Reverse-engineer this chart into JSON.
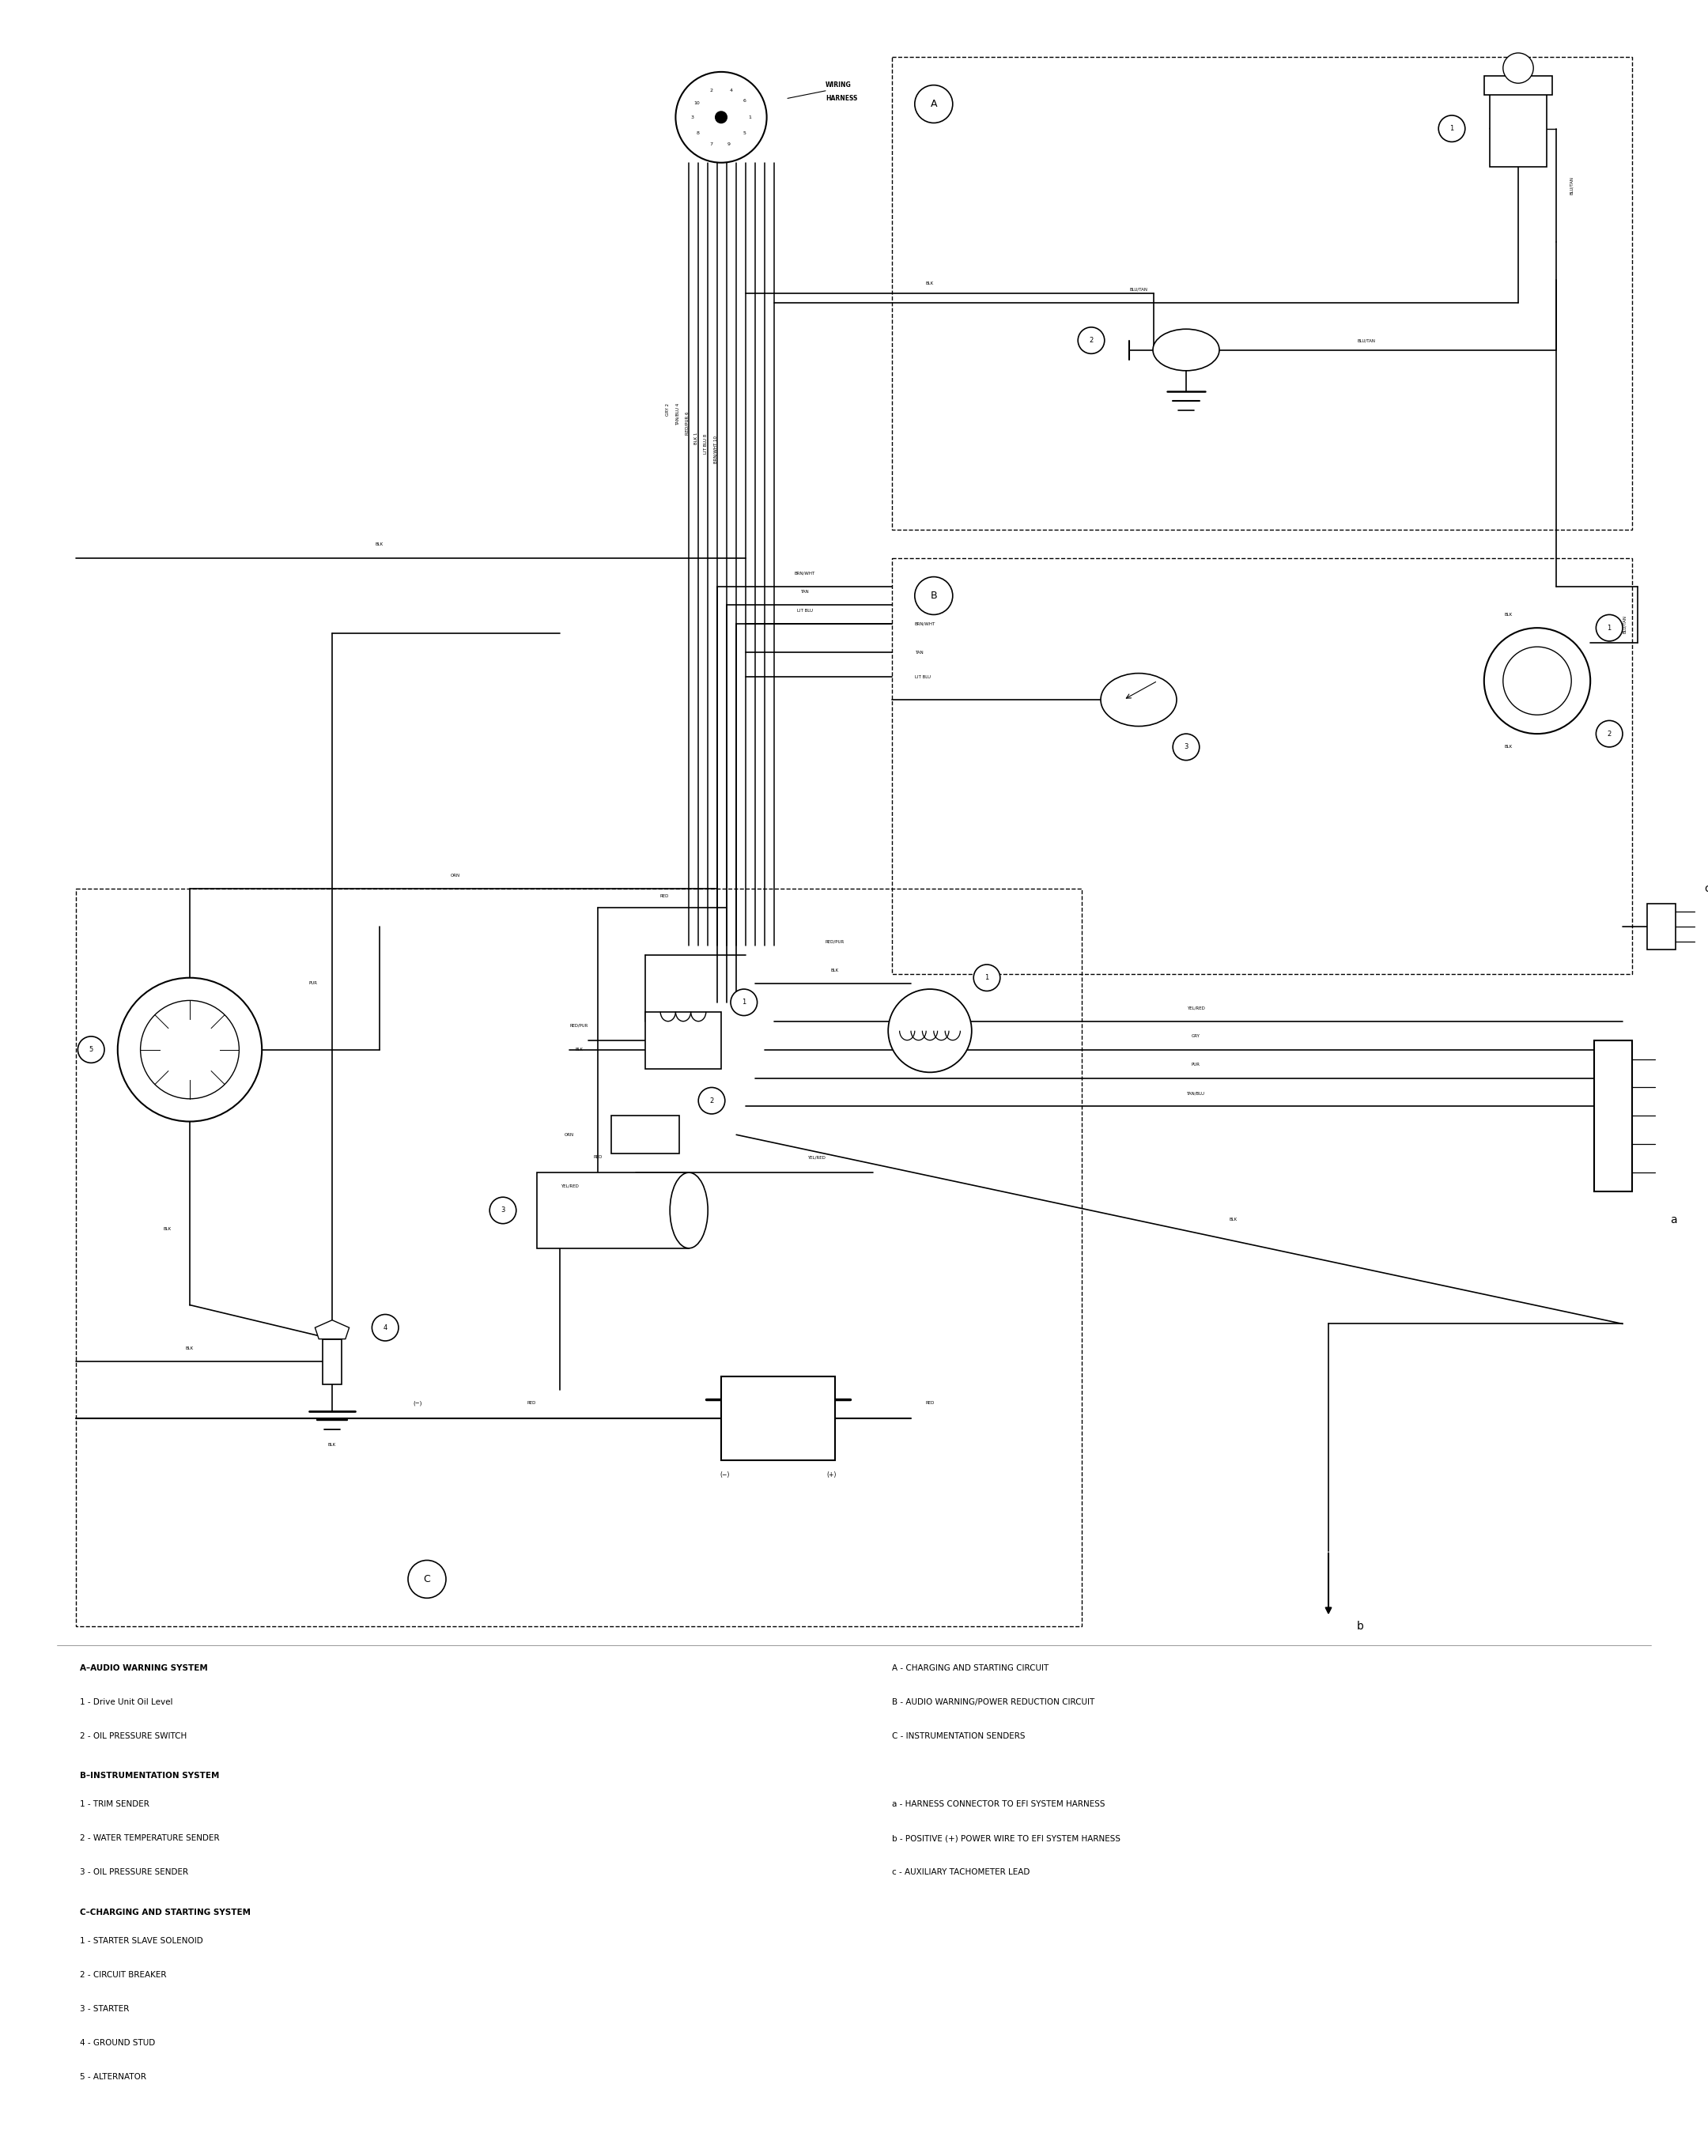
{
  "background_color": "#ffffff",
  "legend_left": [
    {
      "text": "A–AUDIO WARNING SYSTEM",
      "bold": true
    },
    {
      "text": "1 - Drive Unit Oil Level",
      "bold": false
    },
    {
      "text": "2 - OIL PRESSURE SWITCH",
      "bold": false
    },
    {
      "text": "B–INSTRUMENTATION SYSTEM",
      "bold": true
    },
    {
      "text": "1 - TRIM SENDER",
      "bold": false
    },
    {
      "text": "2 - WATER TEMPERATURE SENDER",
      "bold": false
    },
    {
      "text": "3 - OIL PRESSURE SENDER",
      "bold": false
    },
    {
      "text": "C–CHARGING AND STARTING SYSTEM",
      "bold": true
    },
    {
      "text": "1 - STARTER SLAVE SOLENOID",
      "bold": false
    },
    {
      "text": "2 - CIRCUIT BREAKER",
      "bold": false
    },
    {
      "text": "3 - STARTER",
      "bold": false
    },
    {
      "text": "4 - GROUND STUD",
      "bold": false
    },
    {
      "text": "5 - ALTERNATOR",
      "bold": false
    }
  ],
  "legend_right": [
    {
      "text": "A - CHARGING AND STARTING CIRCUIT",
      "bold": false
    },
    {
      "text": "B - AUDIO WARNING/POWER REDUCTION CIRCUIT",
      "bold": false
    },
    {
      "text": "C - INSTRUMENTATION SENDERS",
      "bold": false
    },
    {
      "text": "",
      "bold": false
    },
    {
      "text": "a - HARNESS CONNECTOR TO EFI SYSTEM HARNESS",
      "bold": false
    },
    {
      "text": "b - POSITIVE (+) POWER WIRE TO EFI SYSTEM HARNESS",
      "bold": false
    },
    {
      "text": "c - AUXILIARY TACHOMETER LEAD",
      "bold": false
    }
  ]
}
